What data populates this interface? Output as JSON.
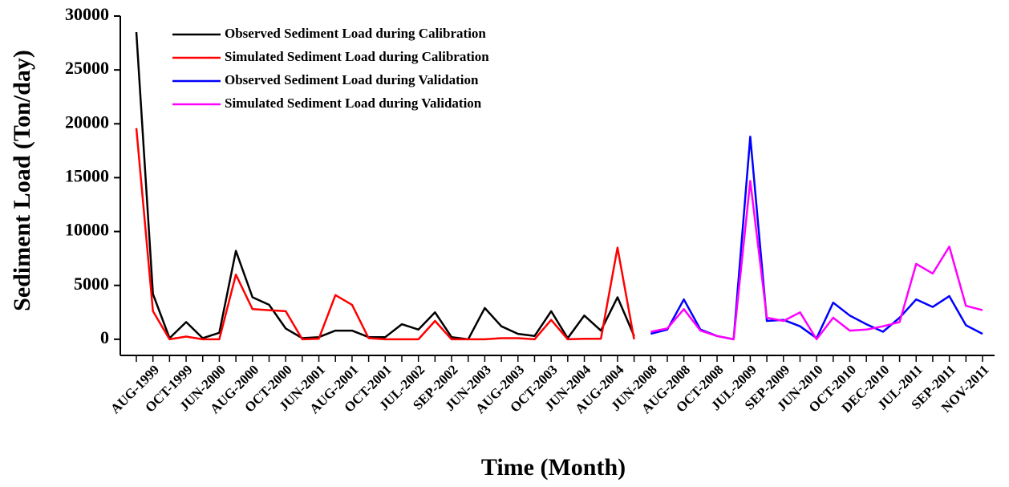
{
  "chart_data": {
    "type": "line",
    "xlabel": "Time (Month)",
    "ylabel": "Sediment Load (Ton/day)",
    "categories": [
      null,
      "AUG-1999",
      null,
      "OCT-1999",
      null,
      "JUN-2000",
      null,
      "AUG-2000",
      null,
      "OCT-2000",
      null,
      "JUN-2001",
      null,
      "AUG-2001",
      null,
      "OCT-2001",
      null,
      "JUL-2002",
      null,
      "SEP-2002",
      null,
      "JUN-2003",
      null,
      "AUG-2003",
      null,
      "OCT-2003",
      null,
      "JUN-2004",
      null,
      "AUG-2004",
      null,
      "JUN-2008",
      null,
      "AUG-2008",
      null,
      "OCT-2008",
      null,
      "JUL-2009",
      null,
      "SEP-2009",
      null,
      "JUN-2010",
      null,
      "OCT-2010",
      null,
      "DEC-2010",
      null,
      "JUL-2011",
      null,
      "SEP-2011",
      null,
      "NOV-2011"
    ],
    "series": [
      {
        "name": "Observed Sediment Load during Calibration",
        "color": "#000000",
        "values": [
          28500,
          4200,
          100,
          1600,
          100,
          600,
          8200,
          3900,
          3200,
          1000,
          100,
          200,
          800,
          800,
          200,
          200,
          1400,
          900,
          2500,
          200,
          0,
          2900,
          1200,
          500,
          300,
          2600,
          100,
          2200,
          800,
          3900,
          300,
          null,
          null,
          null,
          null,
          null,
          null,
          null,
          null,
          null,
          null,
          null,
          null,
          null,
          null,
          null,
          null,
          null,
          null,
          null,
          null,
          null
        ]
      },
      {
        "name": "Simulated Sediment Load during Calibration",
        "color": "#ff0000",
        "values": [
          19600,
          2600,
          0,
          250,
          0,
          0,
          6000,
          2800,
          2700,
          2600,
          0,
          50,
          4100,
          3200,
          100,
          0,
          0,
          0,
          1700,
          0,
          0,
          0,
          100,
          100,
          0,
          1800,
          0,
          50,
          50,
          8500,
          0,
          null,
          null,
          null,
          null,
          null,
          null,
          null,
          null,
          null,
          null,
          null,
          null,
          null,
          null,
          null,
          null,
          null,
          null,
          null,
          null,
          null
        ]
      },
      {
        "name": "Observed Sediment Load during Validation",
        "color": "#0000ff",
        "values": [
          null,
          null,
          null,
          null,
          null,
          null,
          null,
          null,
          null,
          null,
          null,
          null,
          null,
          null,
          null,
          null,
          null,
          null,
          null,
          null,
          null,
          null,
          null,
          null,
          null,
          null,
          null,
          null,
          null,
          null,
          null,
          500,
          900,
          3700,
          900,
          300,
          0,
          18800,
          1700,
          1800,
          1200,
          100,
          3400,
          2200,
          1400,
          700,
          2000,
          3700,
          3000,
          4000,
          1300,
          500
        ]
      },
      {
        "name": "Simulated Sediment Load during Validation",
        "color": "#ff00ff",
        "values": [
          null,
          null,
          null,
          null,
          null,
          null,
          null,
          null,
          null,
          null,
          null,
          null,
          null,
          null,
          null,
          null,
          null,
          null,
          null,
          null,
          null,
          null,
          null,
          null,
          null,
          null,
          null,
          null,
          null,
          null,
          null,
          700,
          1000,
          2800,
          800,
          300,
          0,
          14700,
          2000,
          1700,
          2500,
          0,
          2000,
          800,
          900,
          1200,
          1600,
          7000,
          6100,
          8600,
          3100,
          2700
        ]
      }
    ],
    "ylim": [
      -1500,
      30000
    ],
    "yticks": [
      0,
      5000,
      10000,
      15000,
      20000,
      25000,
      30000
    ],
    "legend": "upper-left"
  }
}
